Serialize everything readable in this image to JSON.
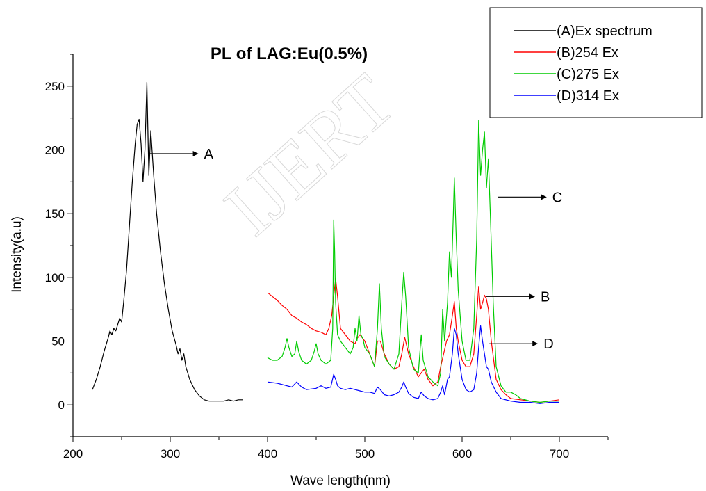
{
  "watermark": "IJERT",
  "chart_data": {
    "type": "line",
    "title": "PL of LAG:Eu(0.5%)",
    "xlabel": "Wave length(nm)",
    "ylabel": "Intensity(a.u)",
    "xlim": [
      200,
      750
    ],
    "ylim": [
      -25,
      275
    ],
    "xticks": [
      200,
      300,
      400,
      500,
      600,
      700
    ],
    "yticks": [
      0,
      50,
      100,
      150,
      200,
      250
    ],
    "grid": false,
    "legend_position": "top-right",
    "series": [
      {
        "name": "(A)Ex spectrum",
        "color": "#000000",
        "x": [
          220,
          224,
          228,
          232,
          236,
          238,
          240,
          242,
          244,
          246,
          248,
          250,
          252,
          255,
          258,
          261,
          264,
          266,
          268,
          270,
          272,
          274,
          276,
          278,
          280,
          283,
          286,
          290,
          294,
          298,
          302,
          306,
          308,
          310,
          312,
          314,
          316,
          320,
          325,
          330,
          335,
          340,
          345,
          350,
          355,
          360,
          365,
          370,
          375
        ],
        "y": [
          12,
          20,
          30,
          42,
          52,
          58,
          55,
          60,
          58,
          63,
          68,
          65,
          80,
          105,
          140,
          175,
          205,
          220,
          224,
          205,
          175,
          200,
          253,
          180,
          215,
          180,
          150,
          120,
          95,
          75,
          58,
          47,
          40,
          44,
          35,
          40,
          30,
          20,
          12,
          7,
          4,
          3,
          3,
          3,
          3,
          4,
          3,
          4,
          4
        ]
      },
      {
        "name": "(B)254 Ex",
        "color": "#ff0000",
        "x": [
          400,
          405,
          410,
          415,
          420,
          425,
          430,
          435,
          440,
          445,
          450,
          455,
          460,
          463,
          466,
          468,
          470,
          472,
          475,
          480,
          485,
          490,
          492,
          495,
          500,
          505,
          510,
          513,
          516,
          520,
          525,
          530,
          535,
          538,
          541,
          545,
          550,
          555,
          558,
          561,
          565,
          570,
          575,
          578,
          581,
          584,
          587,
          590,
          592,
          594,
          596,
          600,
          604,
          608,
          612,
          615,
          617,
          619,
          621,
          623,
          625,
          627,
          630,
          635,
          640,
          645,
          650,
          660,
          670,
          680,
          690,
          700
        ],
        "y": [
          88,
          85,
          82,
          78,
          75,
          70,
          68,
          65,
          63,
          60,
          58,
          57,
          55,
          60,
          70,
          85,
          99,
          85,
          60,
          55,
          50,
          48,
          52,
          55,
          50,
          40,
          30,
          50,
          50,
          40,
          32,
          28,
          30,
          40,
          53,
          40,
          30,
          22,
          25,
          28,
          20,
          15,
          18,
          30,
          40,
          50,
          55,
          70,
          81,
          60,
          50,
          35,
          30,
          30,
          40,
          70,
          93,
          75,
          80,
          86,
          83,
          75,
          50,
          20,
          12,
          8,
          5,
          4,
          3,
          2,
          3,
          4
        ]
      },
      {
        "name": "(C)275 Ex",
        "color": "#00cc00",
        "x": [
          400,
          405,
          410,
          415,
          418,
          420,
          422,
          425,
          428,
          430,
          432,
          435,
          440,
          445,
          448,
          450,
          452,
          455,
          460,
          465,
          467,
          468,
          469,
          470,
          472,
          475,
          480,
          485,
          488,
          490,
          492,
          494,
          496,
          498,
          500,
          505,
          510,
          513,
          515,
          517,
          520,
          525,
          530,
          535,
          538,
          540,
          542,
          545,
          550,
          555,
          558,
          560,
          565,
          570,
          575,
          578,
          580,
          582,
          585,
          587,
          589,
          591,
          592,
          594,
          596,
          600,
          604,
          608,
          612,
          615,
          617,
          619,
          621,
          623,
          625,
          627,
          629,
          632,
          635,
          640,
          645,
          650,
          655,
          660,
          670,
          680,
          690,
          700
        ],
        "y": [
          37,
          35,
          35,
          38,
          45,
          52,
          45,
          38,
          40,
          50,
          42,
          35,
          32,
          35,
          42,
          48,
          40,
          35,
          32,
          35,
          60,
          145,
          120,
          80,
          55,
          50,
          45,
          40,
          45,
          60,
          50,
          70,
          55,
          52,
          45,
          40,
          30,
          60,
          95,
          60,
          38,
          32,
          28,
          40,
          80,
          104,
          85,
          45,
          28,
          25,
          55,
          35,
          22,
          18,
          15,
          25,
          75,
          50,
          80,
          120,
          100,
          150,
          178,
          130,
          90,
          50,
          35,
          35,
          60,
          130,
          223,
          180,
          200,
          214,
          170,
          193,
          150,
          80,
          30,
          15,
          10,
          10,
          8,
          5,
          3,
          2,
          3,
          3
        ]
      },
      {
        "name": "(D)314 Ex",
        "color": "#0000ff",
        "x": [
          400,
          410,
          420,
          425,
          430,
          435,
          440,
          450,
          455,
          460,
          465,
          468,
          470,
          472,
          475,
          480,
          485,
          490,
          495,
          500,
          505,
          510,
          513,
          516,
          520,
          525,
          530,
          535,
          538,
          540,
          542,
          545,
          550,
          555,
          558,
          561,
          565,
          570,
          575,
          578,
          580,
          582,
          585,
          587,
          590,
          592,
          594,
          596,
          600,
          604,
          608,
          612,
          615,
          617,
          619,
          621,
          623,
          625,
          627,
          630,
          635,
          640,
          650,
          660,
          670,
          680,
          690,
          700
        ],
        "y": [
          18,
          17,
          15,
          14,
          18,
          14,
          12,
          13,
          15,
          13,
          14,
          24,
          20,
          15,
          13,
          12,
          13,
          12,
          11,
          10,
          10,
          9,
          14,
          12,
          8,
          7,
          8,
          10,
          14,
          18,
          14,
          9,
          6,
          5,
          10,
          7,
          5,
          4,
          5,
          10,
          15,
          8,
          20,
          22,
          40,
          60,
          55,
          40,
          20,
          12,
          10,
          12,
          25,
          45,
          62,
          50,
          40,
          30,
          28,
          18,
          10,
          5,
          3,
          2,
          2,
          1,
          2,
          2
        ]
      }
    ],
    "annotations": [
      {
        "label": "A",
        "at": [
          279,
          197
        ]
      },
      {
        "label": "C",
        "at": [
          637,
          163
        ]
      },
      {
        "label": "B",
        "at": [
          625,
          85
        ]
      },
      {
        "label": "D",
        "at": [
          628,
          48
        ]
      }
    ]
  }
}
